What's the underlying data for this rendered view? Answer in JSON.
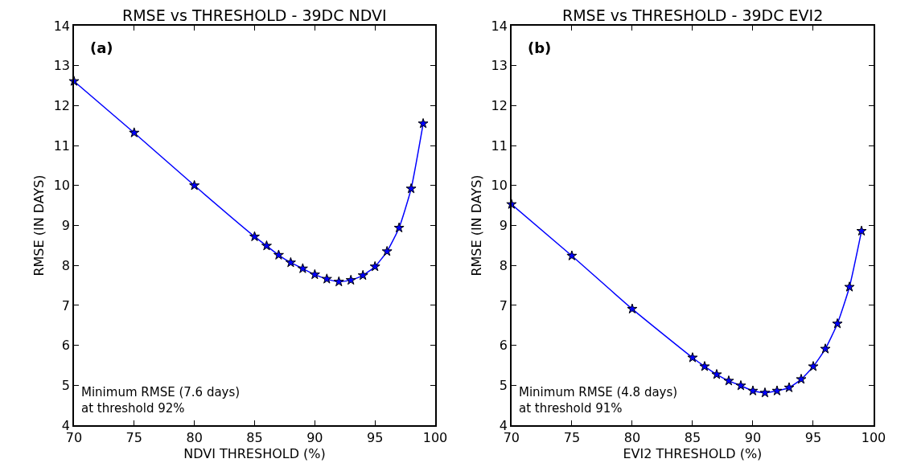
{
  "chart_data": [
    {
      "type": "line",
      "title": "RMSE vs THRESHOLD - 39DC NDVI",
      "xlabel": "NDVI THRESHOLD (%)",
      "ylabel": "RMSE (IN DAYS)",
      "annotations": [
        "(a)",
        "Minimum RMSE (7.6 days)\nat threshold 92%"
      ],
      "x": [
        70,
        75,
        80,
        85,
        86,
        87,
        88,
        89,
        90,
        91,
        92,
        93,
        94,
        95,
        96,
        97,
        98,
        99
      ],
      "series": [
        {
          "color": "#0000ff",
          "values": [
            12.61,
            11.32,
            10.0,
            8.72,
            8.49,
            8.26,
            8.07,
            7.92,
            7.77,
            7.66,
            7.59,
            7.63,
            7.75,
            7.97,
            8.35,
            8.94,
            9.92,
            11.55
          ]
        }
      ],
      "xlim": [
        70,
        100
      ],
      "xticks": [
        70,
        75,
        80,
        85,
        90,
        95,
        100
      ],
      "ylim": [
        4,
        14
      ],
      "yticks": [
        4,
        5,
        6,
        7,
        8,
        9,
        10,
        11,
        12,
        13,
        14
      ],
      "marker": "star",
      "line_style": "solid"
    },
    {
      "type": "line",
      "title": "RMSE vs THRESHOLD - 39DC EVI2",
      "xlabel": "EVI2 THRESHOLD (%)",
      "ylabel": "RMSE (IN DAYS)",
      "annotations": [
        "(b)",
        "Minimum RMSE (4.8 days)\nat threshold 91%"
      ],
      "x": [
        70,
        75,
        80,
        85,
        86,
        87,
        88,
        89,
        90,
        91,
        92,
        93,
        94,
        95,
        96,
        97,
        98,
        99
      ],
      "series": [
        {
          "color": "#0000ff",
          "values": [
            9.53,
            8.24,
            6.91,
            5.69,
            5.47,
            5.27,
            5.11,
            4.99,
            4.86,
            4.81,
            4.86,
            4.94,
            5.15,
            5.47,
            5.91,
            6.54,
            7.46,
            8.86
          ]
        }
      ],
      "xlim": [
        70,
        100
      ],
      "xticks": [
        70,
        75,
        80,
        85,
        90,
        95,
        100
      ],
      "ylim": [
        4,
        14
      ],
      "yticks": [
        4,
        5,
        6,
        7,
        8,
        9,
        10,
        11,
        12,
        13,
        14
      ],
      "marker": "star",
      "line_style": "solid"
    }
  ]
}
